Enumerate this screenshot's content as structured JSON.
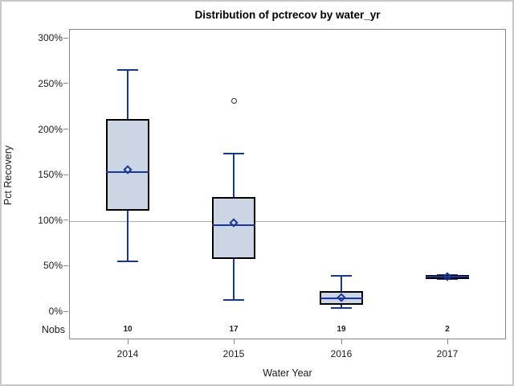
{
  "chart_data": {
    "type": "boxplot",
    "title": "Distribution of pctrecov by water_yr",
    "xlabel": "Water Year",
    "ylabel": "Pct Recovery",
    "ylim": [
      0,
      300
    ],
    "yticks": [
      0,
      50,
      100,
      150,
      200,
      250,
      300
    ],
    "ytick_suffix": "%",
    "reference_line_y": 100,
    "grid": false,
    "legend_position": "none",
    "categories": [
      "2014",
      "2015",
      "2016",
      "2017"
    ],
    "nobs_label": "Nobs",
    "nobs": [
      10,
      17,
      19,
      2
    ],
    "series": [
      {
        "category": "2014",
        "n": 10,
        "whisker_low": 56,
        "q1": 111,
        "median": 154,
        "mean": 156,
        "q3": 212,
        "whisker_high": 266,
        "outliers": []
      },
      {
        "category": "2015",
        "n": 17,
        "whisker_low": 13,
        "q1": 58,
        "median": 95,
        "mean": 98,
        "q3": 126,
        "whisker_high": 174,
        "outliers": [
          232
        ]
      },
      {
        "category": "2016",
        "n": 19,
        "whisker_low": 4,
        "q1": 8,
        "median": 15,
        "mean": 16,
        "q3": 23,
        "whisker_high": 40,
        "outliers": []
      },
      {
        "category": "2017",
        "n": 2,
        "whisker_low": 36,
        "q1": 36,
        "median": 39,
        "mean": 39,
        "q3": 41,
        "whisker_high": 41,
        "outliers": []
      }
    ]
  },
  "colors": {
    "box_fill": "#ccd5e4",
    "box_border": "#000000",
    "line": "#16389c",
    "outlier": "#2f2f2f",
    "reference_line": "#a8a8a8",
    "frame": "#868686",
    "tick": "#8a8a8a",
    "text": "#1c1c1c",
    "outer_border": "#c9c9c9",
    "background": "#ffffff"
  }
}
